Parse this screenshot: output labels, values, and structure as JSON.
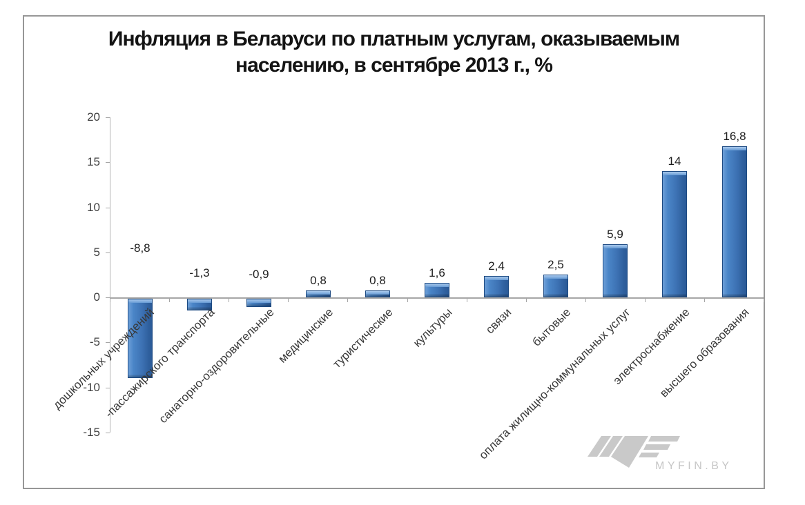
{
  "chart_data": {
    "type": "bar",
    "title": "Инфляция в Беларуси по платным услугам, оказываемым населению, в сентябре 2013 г., %",
    "title_line1": "Инфляция в Беларуси по платным услугам, оказываемым",
    "title_line2": "населению, в сентябре 2013 г., %",
    "categories": [
      "дошкольных учреждений",
      "-пассажирского транспорта",
      "санаторно-оздоровительные",
      "медицинские",
      "туристические",
      "культуры",
      "связи",
      "бытовые",
      "оплата жилищно-коммунальных услуг",
      "электроснабжение",
      "высшего образования"
    ],
    "values": [
      -8.8,
      -1.3,
      -0.9,
      0.8,
      0.8,
      1.6,
      2.4,
      2.5,
      5.9,
      14,
      16.8
    ],
    "value_labels": [
      "-8,8",
      "-1,3",
      "-0,9",
      "0,8",
      "0,8",
      "1,6",
      "2,4",
      "2,5",
      "5,9",
      "14",
      "16,8"
    ],
    "yticks": [
      "20",
      "15",
      "10",
      "5",
      "0",
      "-5",
      "-10",
      "-15"
    ],
    "ylim": [
      -15,
      20
    ],
    "xlabel": "",
    "ylabel": "",
    "legend": "none",
    "grid": "off",
    "bar_color": "#3d74b8",
    "bar_highlight": "#7fb0e2",
    "bar_border": "#1d4a82",
    "axis_color": "#a6a6a6",
    "label_color": "#1c1c1c"
  },
  "watermark": {
    "text": "MYFIN.BY",
    "color": "#c6c6c6",
    "logo": "myfin-logo"
  }
}
